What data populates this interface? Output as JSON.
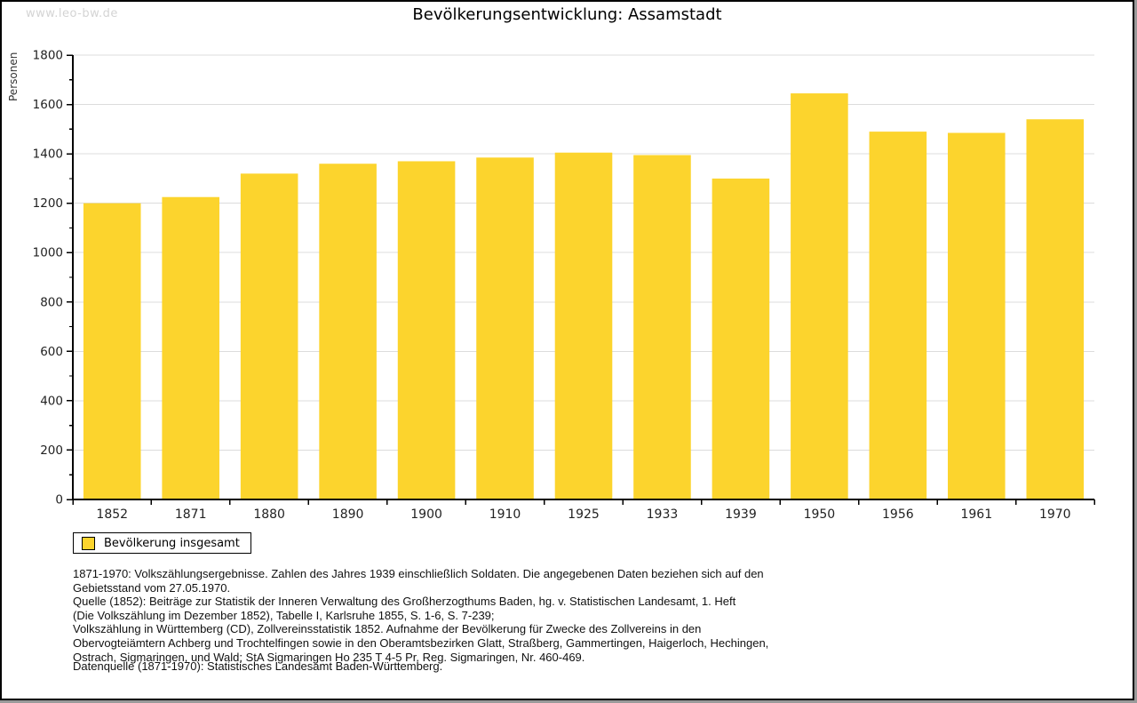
{
  "watermark": "www.leo-bw.de",
  "chart_data": {
    "type": "bar",
    "title": "Bevölkerungsentwicklung: Assamstadt",
    "xlabel": "",
    "ylabel": "Personen",
    "categories": [
      "1852",
      "1871",
      "1880",
      "1890",
      "1900",
      "1910",
      "1925",
      "1933",
      "1939",
      "1950",
      "1956",
      "1961",
      "1970"
    ],
    "values": [
      1200,
      1225,
      1320,
      1360,
      1370,
      1385,
      1405,
      1395,
      1300,
      1645,
      1490,
      1485,
      1540
    ],
    "ylim": [
      0,
      1800
    ],
    "yticks": [
      0,
      200,
      400,
      600,
      800,
      1000,
      1200,
      1400,
      1600,
      1800
    ],
    "minor_tick_step": 100,
    "grid": true,
    "legend_entries": [
      "Bevölkerung insgesamt"
    ],
    "legend_position": "bottom-left"
  },
  "colors": {
    "bar": "#FCD42D",
    "grid": "#DCDCDC",
    "axis": "#000000",
    "tick_label": "#222222",
    "watermark": "#D4D4D4"
  },
  "notes": [
    "1871-1970: Volkszählungsergebnisse. Zahlen des Jahres 1939 einschließlich Soldaten. Die angegebenen Daten beziehen sich auf den",
    "Gebietsstand vom 27.05.1970.",
    "Quelle (1852): Beiträge zur Statistik der Inneren Verwaltung des Großherzogthums Baden, hg. v. Statistischen Landesamt, 1. Heft",
    "(Die Volkszählung im Dezember 1852), Tabelle I, Karlsruhe 1855, S. 1-6, S. 7-239;",
    "Volkszählung in Württemberg (CD), Zollvereinsstatistik 1852. Aufnahme der Bevölkerung für Zwecke des Zollvereins in den",
    "Obervogteiämtern Achberg und Trochtelfingen sowie in den Oberamtsbezirken Glatt, Straßberg, Gammertingen, Haigerloch, Hechingen,",
    "Ostrach, Sigmaringen, und Wald; StA Sigmaringen Ho 235 T 4-5 Pr. Reg. Sigmaringen, Nr. 460-469."
  ],
  "datasource": "Datenquelle (1871-1970): Statistisches Landesamt Baden-Württemberg."
}
